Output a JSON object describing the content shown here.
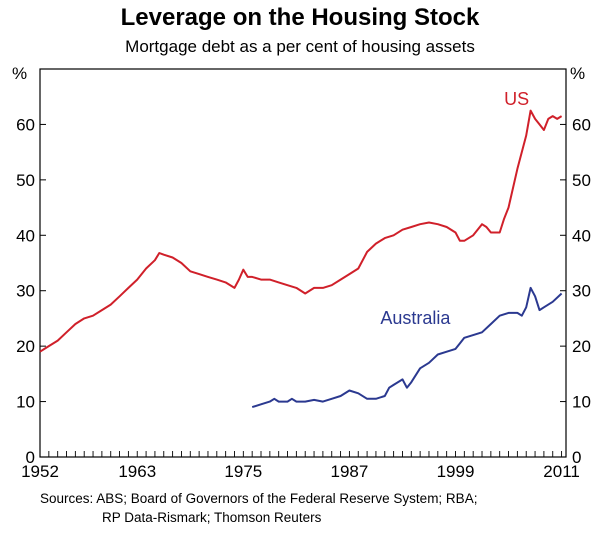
{
  "chart_data": {
    "type": "line",
    "title": "Leverage on the Housing Stock",
    "subtitle": "Mortgage debt as a per cent of housing assets",
    "ylabel_left": "%",
    "ylabel_right": "%",
    "ylim": [
      0,
      70
    ],
    "y_ticks": [
      0,
      10,
      20,
      30,
      40,
      50,
      60
    ],
    "xlim": [
      1952,
      2011.5
    ],
    "x_tick_labels": [
      "1952",
      "1963",
      "1975",
      "1987",
      "1999",
      "2011"
    ],
    "grid": false,
    "colors": {
      "US": "#d0202a",
      "Australia": "#2b3990"
    },
    "series": [
      {
        "name": "US",
        "label_position": "top-right",
        "points": [
          [
            1952.0,
            19.0
          ],
          [
            1952.5,
            19.5
          ],
          [
            1953.0,
            20.0
          ],
          [
            1954.0,
            21.0
          ],
          [
            1955.0,
            22.5
          ],
          [
            1956.0,
            24.0
          ],
          [
            1957.0,
            25.0
          ],
          [
            1958.0,
            25.5
          ],
          [
            1959.0,
            26.5
          ],
          [
            1960.0,
            27.5
          ],
          [
            1961.0,
            29.0
          ],
          [
            1962.0,
            30.5
          ],
          [
            1963.0,
            32.0
          ],
          [
            1964.0,
            34.0
          ],
          [
            1965.0,
            35.5
          ],
          [
            1965.5,
            36.8
          ],
          [
            1966.0,
            36.5
          ],
          [
            1967.0,
            36.0
          ],
          [
            1968.0,
            35.0
          ],
          [
            1969.0,
            33.5
          ],
          [
            1970.0,
            33.0
          ],
          [
            1971.0,
            32.5
          ],
          [
            1972.0,
            32.0
          ],
          [
            1973.0,
            31.5
          ],
          [
            1974.0,
            30.5
          ],
          [
            1974.5,
            32.0
          ],
          [
            1975.0,
            33.8
          ],
          [
            1975.5,
            32.5
          ],
          [
            1976.0,
            32.5
          ],
          [
            1977.0,
            32.0
          ],
          [
            1978.0,
            32.0
          ],
          [
            1979.0,
            31.5
          ],
          [
            1980.0,
            31.0
          ],
          [
            1981.0,
            30.5
          ],
          [
            1982.0,
            29.5
          ],
          [
            1983.0,
            30.5
          ],
          [
            1984.0,
            30.5
          ],
          [
            1985.0,
            31.0
          ],
          [
            1986.0,
            32.0
          ],
          [
            1987.0,
            33.0
          ],
          [
            1988.0,
            34.0
          ],
          [
            1989.0,
            37.0
          ],
          [
            1990.0,
            38.5
          ],
          [
            1991.0,
            39.5
          ],
          [
            1992.0,
            40.0
          ],
          [
            1993.0,
            41.0
          ],
          [
            1994.0,
            41.5
          ],
          [
            1995.0,
            42.0
          ],
          [
            1996.0,
            42.3
          ],
          [
            1997.0,
            42.0
          ],
          [
            1998.0,
            41.5
          ],
          [
            1999.0,
            40.5
          ],
          [
            1999.5,
            39.0
          ],
          [
            2000.0,
            39.0
          ],
          [
            2001.0,
            40.0
          ],
          [
            2002.0,
            42.0
          ],
          [
            2002.5,
            41.5
          ],
          [
            2003.0,
            40.5
          ],
          [
            2004.0,
            40.5
          ],
          [
            2004.5,
            43.0
          ],
          [
            2005.0,
            45.0
          ],
          [
            2006.0,
            52.0
          ],
          [
            2007.0,
            58.0
          ],
          [
            2007.5,
            62.5
          ],
          [
            2008.0,
            61.0
          ],
          [
            2008.5,
            60.0
          ],
          [
            2009.0,
            59.0
          ],
          [
            2009.5,
            61.0
          ],
          [
            2010.0,
            61.5
          ],
          [
            2010.5,
            61.0
          ],
          [
            2011.0,
            61.5
          ]
        ]
      },
      {
        "name": "Australia",
        "label_position": "centre-right",
        "points": [
          [
            1976.0,
            9.0
          ],
          [
            1977.0,
            9.5
          ],
          [
            1978.0,
            10.0
          ],
          [
            1978.5,
            10.5
          ],
          [
            1979.0,
            10.0
          ],
          [
            1980.0,
            10.0
          ],
          [
            1980.5,
            10.5
          ],
          [
            1981.0,
            10.0
          ],
          [
            1982.0,
            10.0
          ],
          [
            1983.0,
            10.3
          ],
          [
            1984.0,
            10.0
          ],
          [
            1985.0,
            10.5
          ],
          [
            1986.0,
            11.0
          ],
          [
            1987.0,
            12.0
          ],
          [
            1988.0,
            11.5
          ],
          [
            1989.0,
            10.5
          ],
          [
            1990.0,
            10.5
          ],
          [
            1991.0,
            11.0
          ],
          [
            1991.5,
            12.5
          ],
          [
            1992.0,
            13.0
          ],
          [
            1993.0,
            14.0
          ],
          [
            1993.5,
            12.5
          ],
          [
            1994.0,
            13.5
          ],
          [
            1995.0,
            16.0
          ],
          [
            1996.0,
            17.0
          ],
          [
            1997.0,
            18.5
          ],
          [
            1998.0,
            19.0
          ],
          [
            1999.0,
            19.5
          ],
          [
            1999.5,
            20.5
          ],
          [
            2000.0,
            21.5
          ],
          [
            2001.0,
            22.0
          ],
          [
            2002.0,
            22.5
          ],
          [
            2003.0,
            24.0
          ],
          [
            2004.0,
            25.5
          ],
          [
            2005.0,
            26.0
          ],
          [
            2006.0,
            26.0
          ],
          [
            2006.5,
            25.5
          ],
          [
            2007.0,
            27.0
          ],
          [
            2007.5,
            30.5
          ],
          [
            2008.0,
            29.0
          ],
          [
            2008.5,
            26.5
          ],
          [
            2009.0,
            27.0
          ],
          [
            2010.0,
            28.0
          ],
          [
            2011.0,
            29.5
          ]
        ]
      }
    ]
  },
  "source_note": {
    "line1": "Sources: ABS; Board of Governors of the Federal Reserve System; RBA;",
    "line2": "RP Data-Rismark; Thomson Reuters"
  }
}
